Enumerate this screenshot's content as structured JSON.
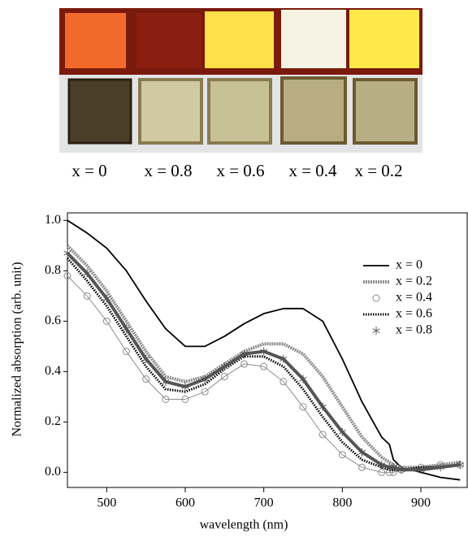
{
  "photo_labels": [
    "x = 0",
    "x = 0.8",
    "x = 0.6",
    "x = 0.4",
    "x = 0.2"
  ],
  "chart_data": {
    "type": "line",
    "x_label": "wavelength (nm)",
    "y_label": "Normalized absorption (arb. unit)",
    "x": [
      450,
      475,
      500,
      525,
      550,
      575,
      600,
      625,
      650,
      675,
      700,
      725,
      750,
      775,
      800,
      825,
      850,
      860,
      865,
      875,
      900,
      925,
      950
    ],
    "series": [
      {
        "name": "x = 0",
        "color": "#000000",
        "style": "solid",
        "values": [
          1.0,
          0.95,
          0.89,
          0.8,
          0.68,
          0.57,
          0.5,
          0.5,
          0.54,
          0.59,
          0.63,
          0.65,
          0.65,
          0.6,
          0.45,
          0.28,
          0.14,
          0.11,
          0.05,
          0.02,
          0.0,
          -0.02,
          -0.03
        ]
      },
      {
        "name": "x = 0.2",
        "color": "#8c8c8c",
        "style": "dashed",
        "values": [
          0.9,
          0.82,
          0.72,
          0.6,
          0.48,
          0.38,
          0.36,
          0.38,
          0.43,
          0.48,
          0.51,
          0.51,
          0.47,
          0.38,
          0.26,
          0.14,
          0.06,
          0.04,
          0.03,
          0.02,
          0.02,
          0.03,
          0.04
        ]
      },
      {
        "name": "x = 0.4",
        "color": "#8c8c8c",
        "style": "circles",
        "values": [
          0.78,
          0.7,
          0.6,
          0.48,
          0.37,
          0.29,
          0.29,
          0.32,
          0.38,
          0.43,
          0.42,
          0.36,
          0.26,
          0.15,
          0.07,
          0.02,
          0.0,
          0.0,
          0.0,
          0.01,
          0.02,
          0.03,
          0.03
        ]
      },
      {
        "name": "x = 0.6",
        "color": "#000000",
        "style": "dotted",
        "values": [
          0.85,
          0.76,
          0.66,
          0.54,
          0.42,
          0.33,
          0.32,
          0.35,
          0.41,
          0.46,
          0.46,
          0.42,
          0.33,
          0.22,
          0.12,
          0.05,
          0.02,
          0.01,
          0.01,
          0.01,
          0.02,
          0.02,
          0.03
        ]
      },
      {
        "name": "x = 0.8",
        "color": "#555555",
        "style": "stars",
        "values": [
          0.87,
          0.79,
          0.69,
          0.57,
          0.45,
          0.36,
          0.34,
          0.37,
          0.42,
          0.47,
          0.48,
          0.45,
          0.37,
          0.26,
          0.16,
          0.08,
          0.03,
          0.02,
          0.02,
          0.01,
          0.01,
          0.02,
          0.03
        ]
      }
    ],
    "xlim": [
      450,
      960
    ],
    "ylim": [
      -0.06,
      1.03
    ],
    "xticks": [
      500,
      600,
      700,
      800,
      900
    ],
    "yticks": [
      {
        "value": 0,
        "label": "0.0"
      },
      0.2,
      0.4,
      0.6,
      0.8,
      {
        "value": 1,
        "label": "1.0"
      }
    ],
    "legend": "upper right"
  }
}
